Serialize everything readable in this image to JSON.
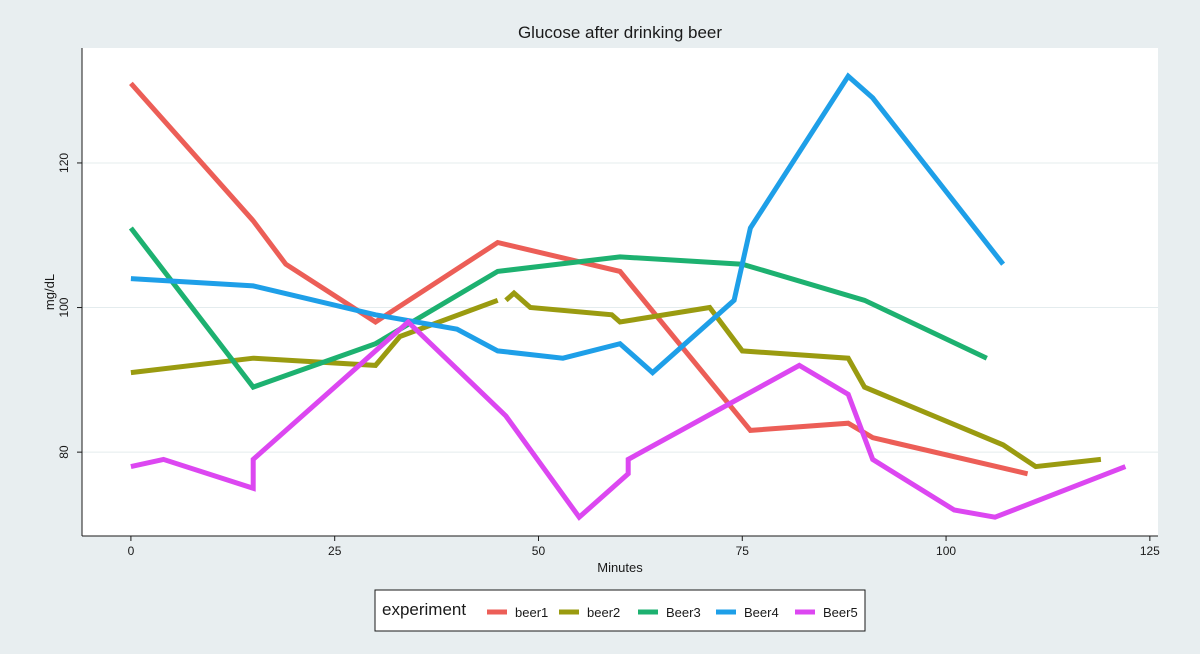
{
  "chart_data": {
    "type": "line",
    "title": "Glucose after drinking beer",
    "xlabel": "Minutes",
    "ylabel": "mg/dL",
    "xlim": [
      -6,
      126
    ],
    "ylim": [
      68.4,
      135.9
    ],
    "xticks": [
      0,
      25,
      50,
      75,
      100,
      125
    ],
    "xtick_labels": [
      "0",
      "25",
      "50",
      "75",
      "100",
      "125"
    ],
    "yticks": [
      80,
      100,
      120
    ],
    "ytick_labels": [
      "80",
      "100",
      "120"
    ],
    "grid": "horizontal",
    "legend": {
      "title": "experiment",
      "position": "bottom-center"
    },
    "series": [
      {
        "name": "beer1",
        "color": "#ec5e57",
        "points": [
          [
            0,
            131
          ],
          [
            15,
            112
          ],
          [
            19,
            106
          ],
          [
            30,
            98
          ],
          [
            45,
            109
          ],
          [
            60,
            105
          ],
          [
            76,
            83
          ],
          [
            88,
            84
          ],
          [
            91,
            82
          ],
          [
            110,
            77
          ]
        ]
      },
      {
        "name": "beer2",
        "color": "#9a9b10",
        "points": [
          [
            0,
            91
          ],
          [
            15,
            93
          ],
          [
            30,
            92
          ],
          [
            33,
            96
          ],
          [
            45,
            101
          ],
          null,
          [
            46,
            101
          ],
          [
            47,
            102
          ],
          [
            49,
            100
          ],
          [
            59,
            99
          ],
          [
            60,
            98
          ],
          [
            71,
            100
          ],
          [
            75,
            94
          ],
          [
            88,
            93
          ],
          [
            90,
            89
          ],
          [
            107,
            81
          ],
          [
            111,
            78
          ],
          [
            119,
            79
          ]
        ]
      },
      {
        "name": "Beer3",
        "color": "#1db170",
        "points": [
          [
            0,
            111
          ],
          [
            15,
            89
          ],
          [
            30,
            95
          ],
          [
            45,
            105
          ],
          [
            60,
            107
          ],
          [
            75,
            106
          ],
          [
            90,
            101
          ],
          [
            105,
            93
          ]
        ]
      },
      {
        "name": "Beer4",
        "color": "#1e9fe8",
        "points": [
          [
            0,
            104
          ],
          [
            15,
            103
          ],
          [
            30,
            99
          ],
          [
            40,
            97
          ],
          [
            45,
            94
          ],
          [
            53,
            93
          ],
          [
            60,
            95
          ],
          [
            64,
            91
          ],
          [
            74,
            101
          ],
          [
            76,
            111
          ],
          [
            88,
            132
          ],
          [
            91,
            129
          ],
          [
            107,
            106
          ]
        ]
      },
      {
        "name": "Beer5",
        "color": "#dc47f1",
        "points": [
          [
            0,
            78
          ],
          [
            4,
            79
          ],
          [
            15,
            75
          ],
          [
            15,
            79
          ],
          [
            34,
            98
          ],
          [
            46,
            85
          ],
          [
            55,
            71
          ],
          [
            61,
            77
          ],
          [
            61,
            79
          ],
          [
            82,
            92
          ],
          [
            88,
            88
          ],
          [
            91,
            79
          ],
          [
            101,
            72
          ],
          [
            106,
            71
          ],
          [
            122,
            78
          ]
        ]
      }
    ]
  }
}
